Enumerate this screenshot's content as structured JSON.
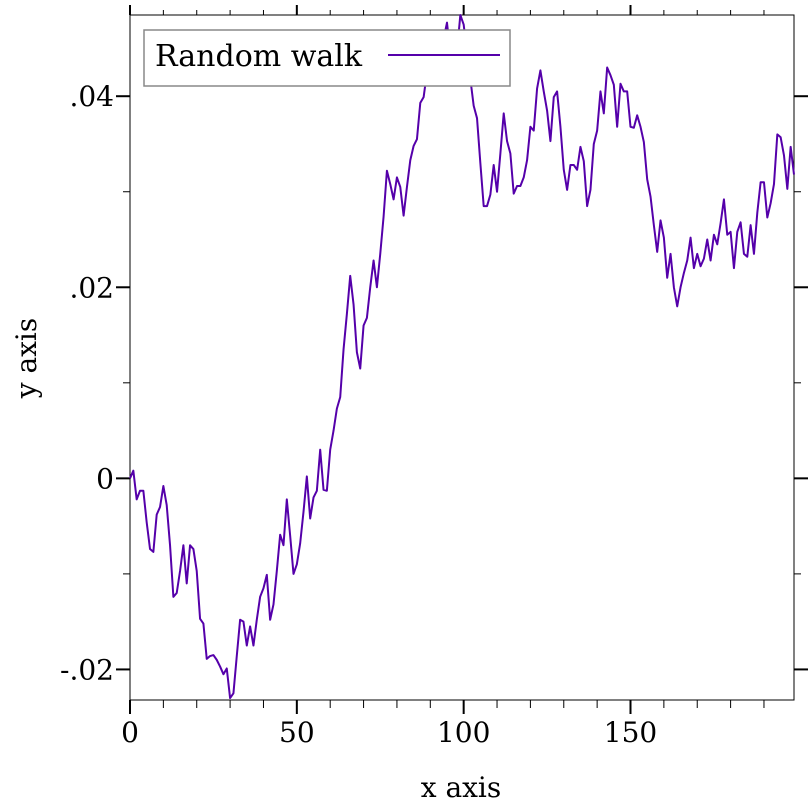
{
  "chart_data": {
    "type": "line",
    "title": "",
    "xlabel": "x axis",
    "ylabel": "y axis",
    "xlim": [
      0,
      199
    ],
    "ylim": [
      -0.0232,
      0.0485
    ],
    "grid": false,
    "legend": {
      "position": "top-left",
      "entries": [
        "Random walk"
      ]
    },
    "x_major_ticks": [
      {
        "value": 0,
        "label": "0"
      },
      {
        "value": 50,
        "label": "50"
      },
      {
        "value": 100,
        "label": "100"
      },
      {
        "value": 150,
        "label": "150"
      }
    ],
    "x_minor_ticks": [
      10,
      20,
      30,
      40,
      60,
      70,
      80,
      90,
      110,
      120,
      130,
      140,
      160,
      170,
      180,
      190
    ],
    "y_major_ticks": [
      {
        "value": -0.02,
        "label": "-.02"
      },
      {
        "value": 0,
        "label": "0"
      },
      {
        "value": 0.02,
        "label": ".02"
      },
      {
        "value": 0.04,
        "label": ".04"
      }
    ],
    "y_minor_ticks": [
      -0.01,
      0.01,
      0.03
    ],
    "series": [
      {
        "name": "Random walk",
        "color": "#5500aa",
        "x": [
          0,
          1,
          2,
          3,
          4,
          5,
          6,
          7,
          8,
          9,
          10,
          11,
          12,
          13,
          14,
          15,
          16,
          17,
          18,
          19,
          20,
          21,
          22,
          23,
          24,
          25,
          26,
          27,
          28,
          29,
          30,
          31,
          32,
          33,
          34,
          35,
          36,
          37,
          38,
          39,
          40,
          41,
          42,
          43,
          44,
          45,
          46,
          47,
          48,
          49,
          50,
          51,
          52,
          53,
          54,
          55,
          56,
          57,
          58,
          59,
          60,
          61,
          62,
          63,
          64,
          65,
          66,
          67,
          68,
          69,
          70,
          71,
          72,
          73,
          74,
          75,
          76,
          77,
          78,
          79,
          80,
          81,
          82,
          83,
          84,
          85,
          86,
          87,
          88,
          89,
          90,
          91,
          92,
          93,
          94,
          95,
          96,
          97,
          98,
          99,
          100,
          101,
          102,
          103,
          104,
          105,
          106,
          107,
          108,
          109,
          110,
          111,
          112,
          113,
          114,
          115,
          116,
          117,
          118,
          119,
          120,
          121,
          122,
          123,
          124,
          125,
          126,
          127,
          128,
          129,
          130,
          131,
          132,
          133,
          134,
          135,
          136,
          137,
          138,
          139,
          140,
          141,
          142,
          143,
          144,
          145,
          146,
          147,
          148,
          149,
          150,
          151,
          152,
          153,
          154,
          155,
          156,
          157,
          158,
          159,
          160,
          161,
          162,
          163,
          164,
          165,
          166,
          167,
          168,
          169,
          170,
          171,
          172,
          173,
          174,
          175,
          176,
          177,
          178,
          179,
          180,
          181,
          182,
          183,
          184,
          185,
          186,
          187,
          188,
          189,
          190,
          191,
          192,
          193,
          194,
          195,
          196,
          197,
          198,
          199
        ],
        "y": [
          0.0,
          0.0008,
          -0.0022,
          -0.0013,
          -0.0013,
          -0.0046,
          -0.0074,
          -0.0077,
          -0.0038,
          -0.003,
          -0.0008,
          -0.0028,
          -0.007,
          -0.0124,
          -0.012,
          -0.0097,
          -0.007,
          -0.011,
          -0.007,
          -0.0074,
          -0.0097,
          -0.0147,
          -0.0152,
          -0.0189,
          -0.0186,
          -0.0185,
          -0.019,
          -0.0197,
          -0.0205,
          -0.0199,
          -0.023,
          -0.0225,
          -0.0186,
          -0.0148,
          -0.015,
          -0.0175,
          -0.0155,
          -0.0175,
          -0.0148,
          -0.0124,
          -0.0115,
          -0.0101,
          -0.0148,
          -0.0132,
          -0.0097,
          -0.0059,
          -0.007,
          -0.0022,
          -0.006,
          -0.01,
          -0.009,
          -0.0068,
          -0.0035,
          0.0002,
          -0.0042,
          -0.002,
          -0.0013,
          0.003,
          -0.0012,
          -0.0013,
          0.003,
          0.005,
          0.0073,
          0.0085,
          0.0135,
          0.0172,
          0.0212,
          0.0182,
          0.0132,
          0.0115,
          0.016,
          0.0168,
          0.02,
          0.0228,
          0.02,
          0.0235,
          0.0274,
          0.0322,
          0.0308,
          0.0292,
          0.0315,
          0.0305,
          0.0275,
          0.0305,
          0.0333,
          0.0348,
          0.0355,
          0.0393,
          0.0399,
          0.0425,
          0.0423,
          0.0437,
          0.044,
          0.0413,
          0.046,
          0.0477,
          0.0445,
          0.0455,
          0.0447,
          0.0485,
          0.0475,
          0.0445,
          0.0418,
          0.039,
          0.0377,
          0.033,
          0.0285,
          0.0285,
          0.0297,
          0.0328,
          0.03,
          0.034,
          0.0382,
          0.0353,
          0.034,
          0.0298,
          0.0306,
          0.0306,
          0.0315,
          0.0333,
          0.0368,
          0.0364,
          0.0408,
          0.0427,
          0.0405,
          0.0385,
          0.0353,
          0.0399,
          0.0405,
          0.0368,
          0.0323,
          0.0302,
          0.0328,
          0.0328,
          0.0323,
          0.0347,
          0.0332,
          0.0285,
          0.0302,
          0.035,
          0.0364,
          0.0405,
          0.0382,
          0.043,
          0.0422,
          0.0412,
          0.0368,
          0.0413,
          0.0405,
          0.0405,
          0.0368,
          0.0367,
          0.038,
          0.0368,
          0.0352,
          0.0313,
          0.0295,
          0.0265,
          0.0237,
          0.027,
          0.0252,
          0.021,
          0.0235,
          0.02,
          0.018,
          0.02,
          0.0215,
          0.0228,
          0.0252,
          0.022,
          0.0235,
          0.0222,
          0.023,
          0.025,
          0.0228,
          0.0255,
          0.0245,
          0.0267,
          0.0292,
          0.0255,
          0.0258,
          0.022,
          0.0258,
          0.0268,
          0.0235,
          0.0232,
          0.0265,
          0.0235,
          0.0278,
          0.031,
          0.031,
          0.0273,
          0.0288,
          0.0308,
          0.036,
          0.0357,
          0.0338,
          0.0303,
          0.0347,
          0.0318
        ]
      }
    ]
  }
}
